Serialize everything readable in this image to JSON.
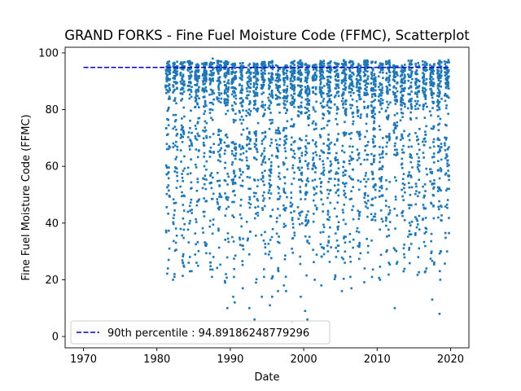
{
  "chart_data": {
    "type": "scatter",
    "title": "GRAND FORKS - Fine Fuel Moisture Code (FFMC), Scatterplot",
    "xlabel": "Date",
    "ylabel": "Fine Fuel Moisture Code (FFMC)",
    "xlim": [
      1967.5,
      2022.5
    ],
    "ylim": [
      -4,
      102
    ],
    "xticks": [
      1970,
      1980,
      1990,
      2000,
      2010,
      2020
    ],
    "yticks": [
      0,
      20,
      40,
      60,
      80,
      100
    ],
    "grid": false,
    "legend_position": "lower-left",
    "data_range_years": [
      1981,
      2019
    ],
    "series": [
      {
        "name": "90th percentile : 94.89186248779296",
        "kind": "dashed-line",
        "color": "#0000cc",
        "x": [
          1970,
          2019.8
        ],
        "y": [
          94.89186248779296,
          94.89186248779296
        ]
      },
      {
        "kind": "points",
        "color": "#1f77b4",
        "x": [
          1981.5,
          1981.6,
          1981.7,
          1982.2,
          1982.4,
          1983.6,
          1984.5,
          1985.4,
          1986.7,
          1987.5,
          1987.6,
          1988.4,
          1989.3,
          1989.6,
          1990.4,
          1990.5,
          1990.6,
          1991.7,
          1992.6,
          1993.3,
          1993.5,
          1994.3,
          1994.6,
          1995.4,
          1995.7,
          1996.5,
          1997.3,
          1997.6,
          1998.4,
          1999.6,
          2000.2,
          2000.5,
          2001.5,
          2002.4,
          2003.3,
          2004.3,
          2005.2,
          2005.6,
          2006.5,
          2007.6,
          2008.3,
          2009.3,
          2010.4,
          2011.6,
          2012.4,
          2013.6,
          2014.4,
          2015.6,
          2016.6,
          2017.5,
          2018.5,
          2018.6
        ],
        "y": [
          24,
          27,
          31,
          20,
          22,
          29,
          23,
          26,
          32,
          21,
          98,
          38,
          19,
          10,
          14,
          21,
          12,
          17,
          10,
          6,
          19,
          14,
          21,
          11,
          14,
          16,
          18,
          16,
          5,
          14,
          9,
          6,
          20,
          18,
          30,
          21,
          16,
          26,
          17,
          33,
          24,
          21,
          20,
          26,
          10,
          23,
          36,
          28,
          23,
          13,
          8,
          20
        ]
      }
    ]
  }
}
